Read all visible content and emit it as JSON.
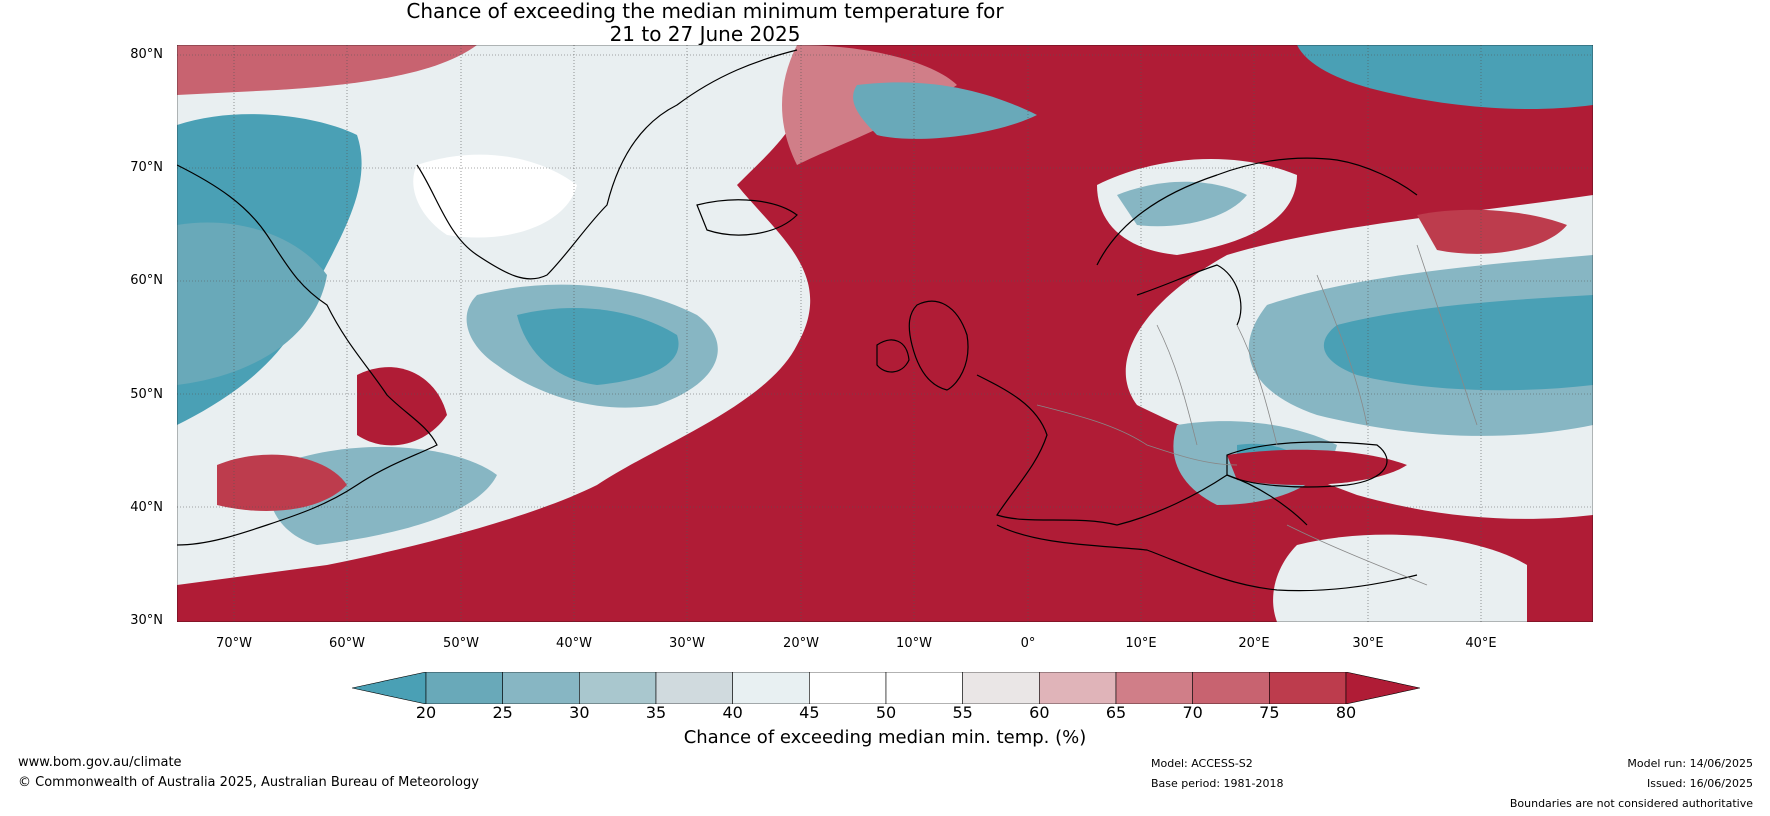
{
  "title_line1": "Chance of exceeding the median minimum temperature for",
  "title_line2": "21 to 27 June 2025",
  "lat_labels": [
    "80°N",
    "70°N",
    "60°N",
    "50°N",
    "40°N",
    "30°N"
  ],
  "lon_labels": [
    "70°W",
    "60°W",
    "50°W",
    "40°W",
    "30°W",
    "20°W",
    "10°W",
    "0°",
    "10°E",
    "20°E",
    "30°E",
    "40°E"
  ],
  "colorbar": {
    "ticks": [
      "20",
      "25",
      "30",
      "35",
      "40",
      "45",
      "50",
      "55",
      "60",
      "65",
      "70",
      "75",
      "80"
    ],
    "colors": [
      "#4aa0b5",
      "#69a9b9",
      "#87b6c3",
      "#a9c7ce",
      "#d0dade",
      "#e8f0f2",
      "#ffffff",
      "#ffffff",
      "#eae6e6",
      "#e0b4b9",
      "#d07e88",
      "#c86370",
      "#bd3c4d",
      "#b01c36"
    ],
    "label": "Chance of exceeding median min. temp. (%)"
  },
  "footer": {
    "website": "www.bom.gov.au/climate",
    "copyright": "© Commonwealth of Australia 2025, Australian Bureau of Meteorology",
    "model": "Model: ACCESS-S2",
    "base_period": "Base period: 1981-2018",
    "model_run": "Model run: 14/06/2025",
    "issued": "Issued: 16/06/2025",
    "disclaimer": "Boundaries are not considered authoritative"
  }
}
